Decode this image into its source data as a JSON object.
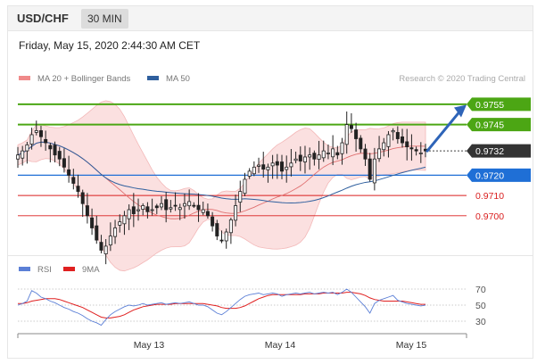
{
  "header": {
    "pair": "USD/CHF",
    "timeframe": "30 MIN"
  },
  "datetime": "Friday, May 15, 2020 2:44:30 AM CET",
  "copyright": "Research © 2020 Trading Central",
  "legend_price": [
    {
      "label": "MA 20 + Bollinger Bands",
      "color": "#f08a8a"
    },
    {
      "label": "MA 50",
      "color": "#2f5f9e"
    }
  ],
  "legend_rsi": [
    {
      "label": "RSI",
      "color": "#5b7fd6"
    },
    {
      "label": "9MA",
      "color": "#e02020"
    }
  ],
  "colors": {
    "resistance": "#4ca614",
    "current": "#333333",
    "pivot": "#1f6fd6",
    "support": "#d91e1e",
    "bollinger_fill": "#f9d6d6",
    "ma50": "#2f5f9e",
    "ma20": "#e07070",
    "arrow": "#2e64b8"
  },
  "chart_data": [
    {
      "type": "candlestick",
      "title": "USD/CHF 30 MIN",
      "x_tick_labels": [
        "May 13",
        "May 14",
        "May 15"
      ],
      "ylim": [
        0.9681,
        0.9762
      ],
      "levels": [
        {
          "value": 0.9755,
          "label": "0.9755",
          "kind": "resistance"
        },
        {
          "value": 0.9745,
          "label": "0.9745",
          "kind": "resistance"
        },
        {
          "value": 0.9732,
          "label": "0.9732",
          "kind": "current"
        },
        {
          "value": 0.972,
          "label": "0.9720",
          "kind": "pivot"
        },
        {
          "value": 0.971,
          "label": "0.9710",
          "kind": "support"
        },
        {
          "value": 0.97,
          "label": "0.9700",
          "kind": "support"
        }
      ],
      "series": [
        {
          "name": "MA 20 + Bollinger Bands"
        },
        {
          "name": "MA 50"
        }
      ],
      "close": [
        0.973,
        0.9732,
        0.9735,
        0.974,
        0.9742,
        0.9739,
        0.9736,
        0.9733,
        0.973,
        0.9728,
        0.9724,
        0.972,
        0.9716,
        0.9712,
        0.9706,
        0.97,
        0.9694,
        0.9688,
        0.9683,
        0.9685,
        0.969,
        0.9694,
        0.9697,
        0.97,
        0.9703,
        0.9701,
        0.9703,
        0.9705,
        0.9702,
        0.9703,
        0.9704,
        0.9706,
        0.9703,
        0.9704,
        0.9705,
        0.9704,
        0.9706,
        0.9707,
        0.9705,
        0.9703,
        0.9703,
        0.97,
        0.9695,
        0.969,
        0.9688,
        0.9692,
        0.9698,
        0.9705,
        0.9712,
        0.9718,
        0.9722,
        0.9724,
        0.9725,
        0.9723,
        0.9724,
        0.9726,
        0.9725,
        0.9722,
        0.9724,
        0.9726,
        0.9728,
        0.9727,
        0.9729,
        0.973,
        0.9728,
        0.973,
        0.9732,
        0.9731,
        0.9733,
        0.973,
        0.9736,
        0.9745,
        0.9743,
        0.9738,
        0.9733,
        0.9728,
        0.9718,
        0.9728,
        0.9733,
        0.9736,
        0.974,
        0.9742,
        0.9738,
        0.9736,
        0.9734,
        0.9733,
        0.9732,
        0.9731,
        0.9732
      ]
    },
    {
      "type": "line",
      "title": "RSI",
      "ylim": [
        20,
        80
      ],
      "y_tick_labels": [
        "70",
        "50",
        "30"
      ],
      "series": [
        {
          "name": "RSI",
          "values": [
            50,
            52,
            55,
            68,
            65,
            60,
            58,
            55,
            53,
            50,
            47,
            45,
            42,
            40,
            37,
            33,
            30,
            28,
            25,
            32,
            38,
            42,
            45,
            48,
            50,
            49,
            50,
            52,
            50,
            51,
            52,
            53,
            51,
            52,
            53,
            52,
            53,
            54,
            52,
            50,
            50,
            48,
            44,
            40,
            38,
            42,
            47,
            52,
            57,
            61,
            63,
            64,
            65,
            63,
            64,
            65,
            64,
            61,
            63,
            64,
            65,
            64,
            65,
            66,
            64,
            65,
            66,
            65,
            66,
            63,
            66,
            70,
            66,
            60,
            54,
            48,
            40,
            52,
            56,
            58,
            60,
            62,
            56,
            54,
            52,
            51,
            50,
            49,
            50
          ]
        },
        {
          "name": "9MA",
          "values": [
            52,
            52,
            53,
            55,
            56,
            57,
            58,
            58,
            58,
            57,
            55,
            53,
            51,
            49,
            47,
            44,
            41,
            38,
            35,
            34,
            34,
            35,
            36,
            38,
            41,
            44,
            46,
            48,
            49,
            50,
            51,
            51,
            51,
            51,
            52,
            52,
            52,
            52,
            52,
            52,
            52,
            51,
            50,
            49,
            47,
            46,
            46,
            46,
            47,
            49,
            52,
            55,
            58,
            60,
            62,
            63,
            63,
            63,
            63,
            63,
            63,
            63,
            64,
            64,
            64,
            64,
            65,
            65,
            65,
            65,
            65,
            66,
            66,
            65,
            64,
            62,
            59,
            57,
            56,
            55,
            55,
            55,
            55,
            55,
            54,
            53,
            52,
            51,
            51
          ]
        }
      ]
    }
  ]
}
